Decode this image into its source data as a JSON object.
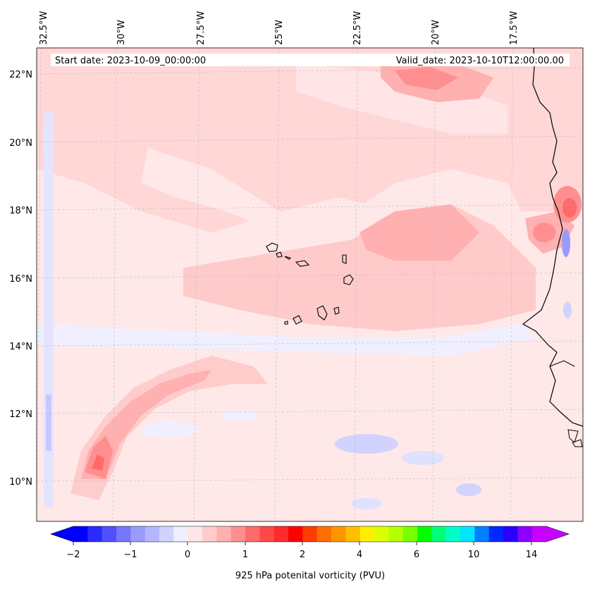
{
  "header": {
    "start_date": "Start date: 2023-10-09_00:00:00",
    "valid_date": "Valid_date: 2023-10-10T12:00:00.00"
  },
  "map": {
    "lon_labels": [
      "32.5°W",
      "30°W",
      "27.5°W",
      "25°W",
      "22.5°W",
      "20°W",
      "17.5°W"
    ],
    "lat_labels": [
      "22°N",
      "20°N",
      "18°N",
      "16°N",
      "14°N",
      "12°N",
      "10°N"
    ],
    "coastline_color": "#000000",
    "gridlines": true
  },
  "colorbar": {
    "label": "925 hPa potenital vorticity (PVU)",
    "tick_labels": [
      "−2",
      "−1",
      "0",
      "1",
      "2",
      "4",
      "6",
      "10",
      "14"
    ],
    "colors": [
      "#0000ff",
      "#2a2aff",
      "#5050ff",
      "#7575ff",
      "#9a9aff",
      "#b4b4ff",
      "#d2d2ff",
      "#efefff",
      "#ffe6e6",
      "#ffcccc",
      "#ffb0b0",
      "#ff8f8f",
      "#ff6a6a",
      "#ff4848",
      "#ff2a2a",
      "#ff0000",
      "#ff3c00",
      "#ff6e00",
      "#ff9600",
      "#ffbe00",
      "#fff000",
      "#dcff00",
      "#b4ff00",
      "#78ff00",
      "#00ff00",
      "#00ff78",
      "#00ffc8",
      "#00e6ff",
      "#0080ff",
      "#0028ff",
      "#2800ff",
      "#8c00ff",
      "#c800ff"
    ],
    "arrow_low": "#0000ff",
    "arrow_high": "#c800ff"
  }
}
